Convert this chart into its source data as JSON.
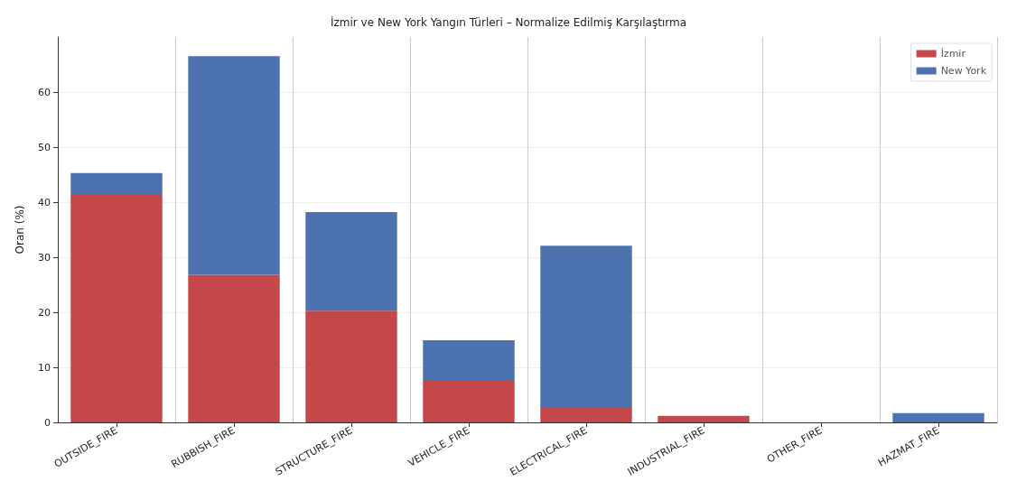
{
  "chart_data": {
    "type": "bar",
    "title": "İzmir ve New York Yangın Türleri – Normalize Edilmiş Karşılaştırma",
    "ylabel": "Oran (%)",
    "categories": [
      "OUTSIDE_FIRE",
      "RUBBISH_FIRE",
      "STRUCTURE_FIRE",
      "VEHICLE_FIRE",
      "ELECTRICAL_FIRE",
      "INDUSTRIAL_FIRE",
      "OTHER_FIRE",
      "HAZMAT_FIRE"
    ],
    "series": [
      {
        "name": "İzmir",
        "color": "#c4474a",
        "values": [
          41.3,
          26.8,
          20.3,
          7.7,
          2.8,
          1.2,
          0,
          0
        ]
      },
      {
        "name": "New York",
        "color": "#4c72b0",
        "values": [
          4.0,
          39.7,
          17.9,
          7.2,
          29.3,
          0,
          0,
          1.7
        ]
      }
    ],
    "stacked": true,
    "ylim": [
      0,
      70
    ],
    "yticks": [
      0,
      10,
      20,
      30,
      40,
      50,
      60
    ],
    "grid": true,
    "legend": "top right"
  }
}
